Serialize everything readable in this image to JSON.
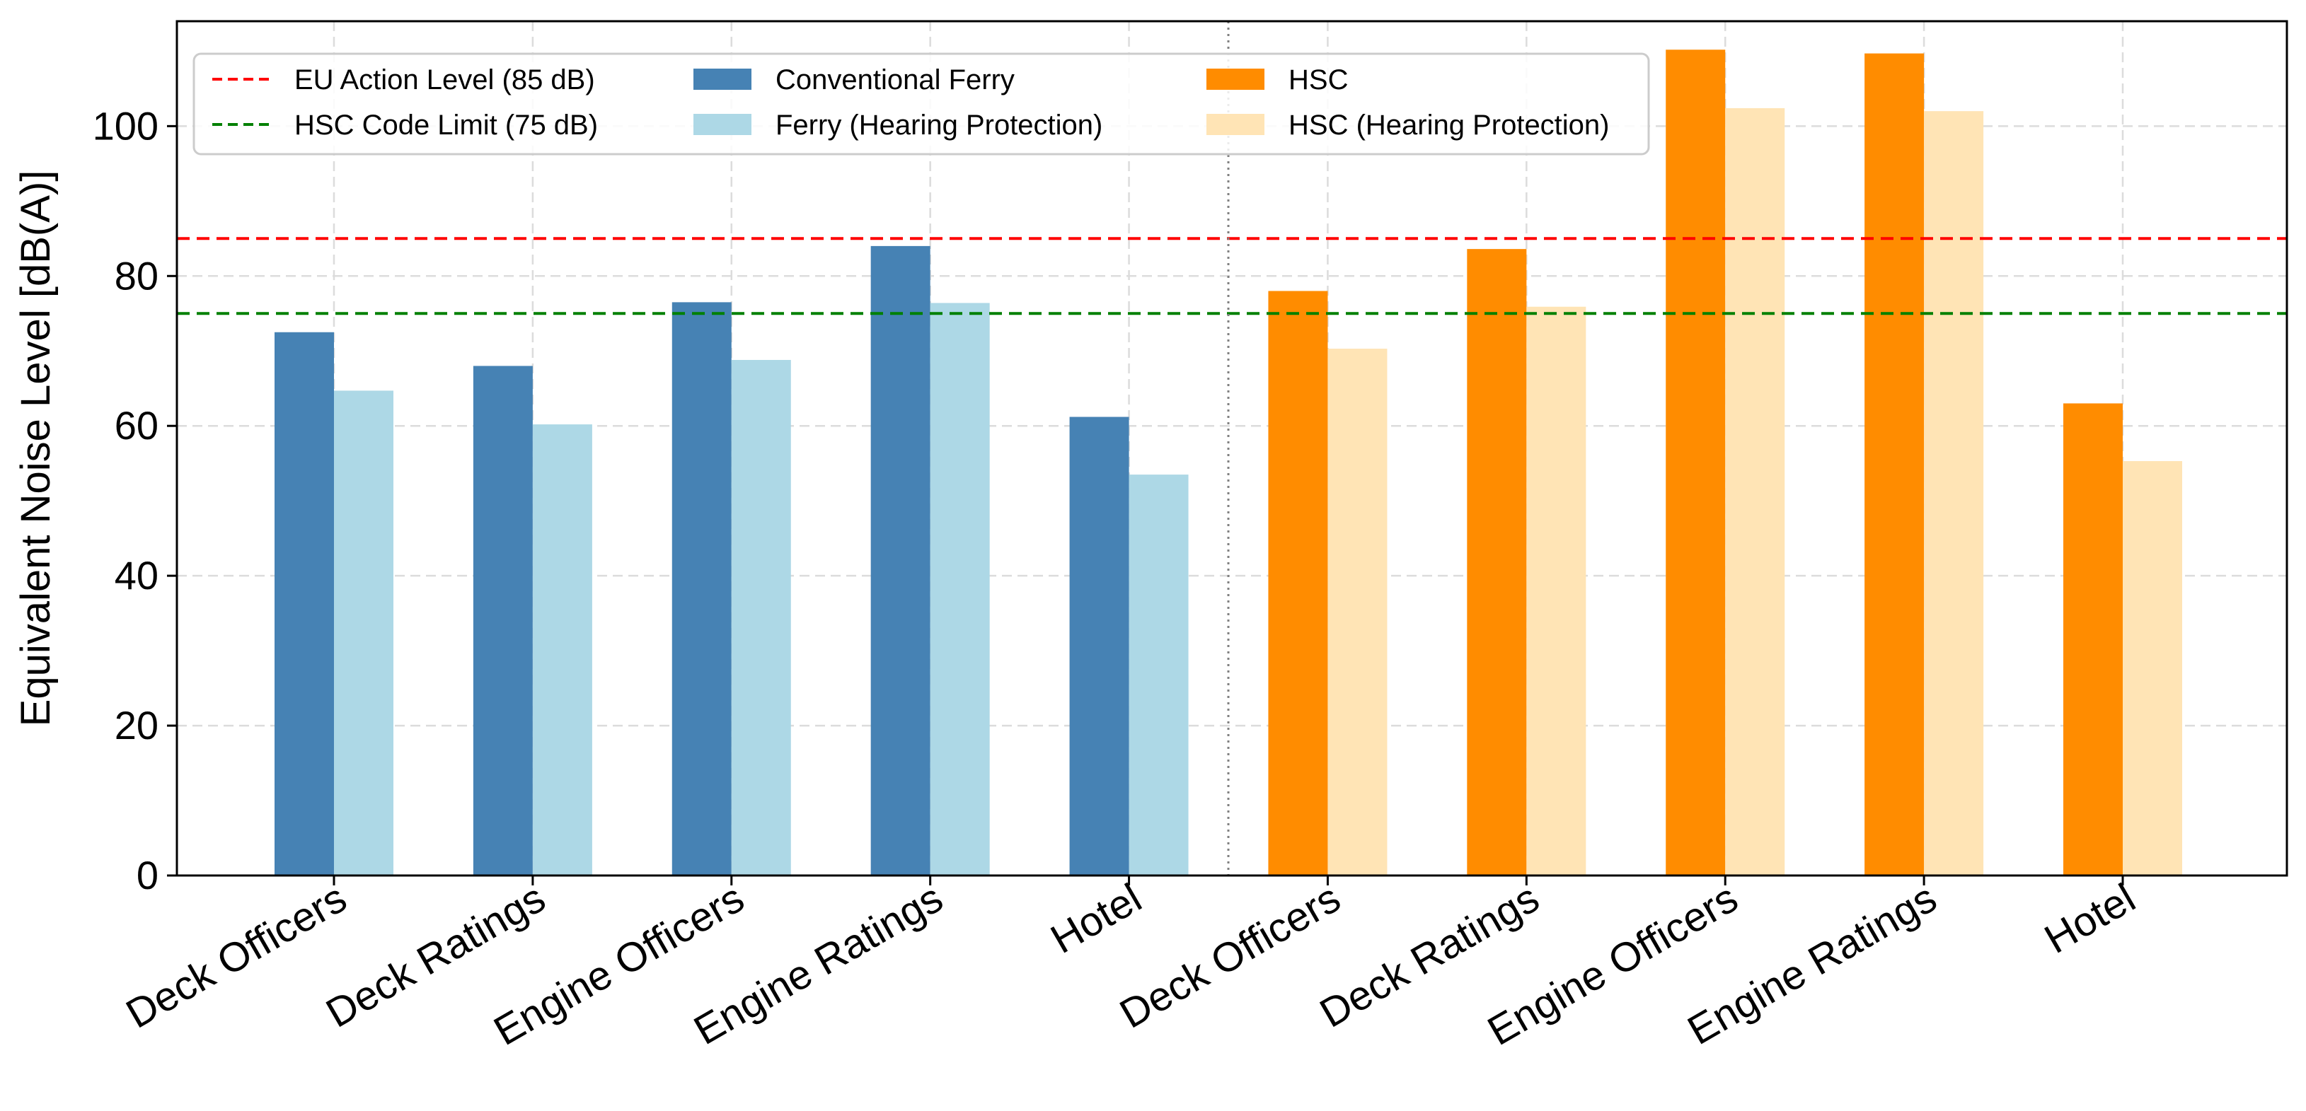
{
  "chart_data": {
    "type": "bar",
    "title": "",
    "ylabel": "Equivalent Noise Level [dB(A)]",
    "xlabel": "",
    "ylim": [
      0,
      114
    ],
    "yticks": [
      0,
      20,
      40,
      60,
      80,
      100
    ],
    "grid": true,
    "legend_position": "top-left",
    "groups": [
      {
        "name": "Conventional Ferry",
        "categories": [
          "Deck Officers",
          "Deck Ratings",
          "Engine Officers",
          "Engine Ratings",
          "Hotel"
        ],
        "series": [
          {
            "name": "Conventional Ferry",
            "color": "#4682b4",
            "values": [
              72.5,
              68.0,
              76.5,
              84.0,
              61.2
            ]
          },
          {
            "name": "Ferry (Hearing Protection)",
            "color": "#add8e6",
            "values": [
              64.7,
              60.2,
              68.8,
              76.4,
              53.5
            ]
          }
        ]
      },
      {
        "name": "HSC",
        "categories": [
          "Deck Officers",
          "Deck Ratings",
          "Engine Officers",
          "Engine Ratings",
          "Hotel"
        ],
        "series": [
          {
            "name": "HSC",
            "color": "#ff8c00",
            "values": [
              78.0,
              83.6,
              110.2,
              109.7,
              63.0
            ]
          },
          {
            "name": "HSC (Hearing Protection)",
            "color": "#ffe4b5",
            "values": [
              70.3,
              75.9,
              102.4,
              102.0,
              55.3
            ]
          }
        ]
      }
    ],
    "reference_lines": [
      {
        "name": "EU Action Level (85 dB)",
        "value": 85,
        "color": "#ff0000"
      },
      {
        "name": "HSC Code Limit (75 dB)",
        "value": 75,
        "color": "#008000"
      }
    ],
    "legend": [
      {
        "label": "EU Action Level (85 dB)",
        "kind": "line",
        "color": "#ff0000"
      },
      {
        "label": "HSC Code Limit (75 dB)",
        "kind": "line",
        "color": "#008000"
      },
      {
        "label": "Conventional Ferry",
        "kind": "bar",
        "color": "#4682b4"
      },
      {
        "label": "Ferry (Hearing Protection)",
        "kind": "bar",
        "color": "#add8e6"
      },
      {
        "label": "HSC",
        "kind": "bar",
        "color": "#ff8c00"
      },
      {
        "label": "HSC (Hearing Protection)",
        "kind": "bar",
        "color": "#ffe4b5"
      }
    ]
  }
}
